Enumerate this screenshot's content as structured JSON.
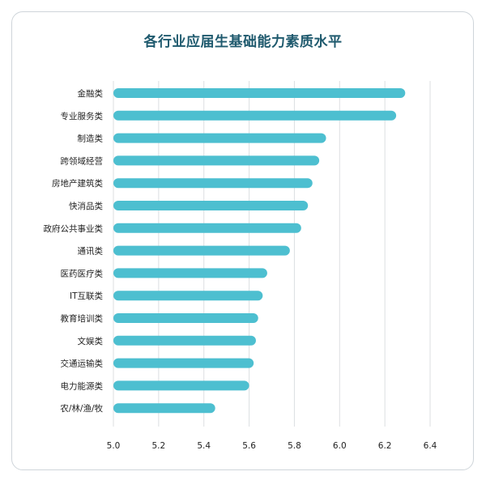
{
  "chart_data": {
    "type": "bar",
    "orientation": "horizontal",
    "title": "各行业应届生基础能力素质水平",
    "xlabel": "",
    "ylabel": "",
    "xlim": [
      5.0,
      6.4
    ],
    "xticks": [
      "5.0",
      "5.2",
      "5.4",
      "5.6",
      "5.8",
      "6.0",
      "6.2",
      "6.4"
    ],
    "grid": "vertical",
    "bar_color": "#4dbfd0",
    "categories": [
      "金融类",
      "专业服务类",
      "制造类",
      "跨领域经营",
      "房地产建筑类",
      "快消品类",
      "政府公共事业类",
      "通讯类",
      "医药医疗类",
      "IT互联类",
      "教育培训类",
      "文娱类",
      "交通运输类",
      "电力能源类",
      "农/林/渔/牧"
    ],
    "values": [
      6.29,
      6.25,
      5.94,
      5.91,
      5.88,
      5.86,
      5.83,
      5.78,
      5.68,
      5.66,
      5.64,
      5.63,
      5.62,
      5.6,
      5.45
    ]
  }
}
